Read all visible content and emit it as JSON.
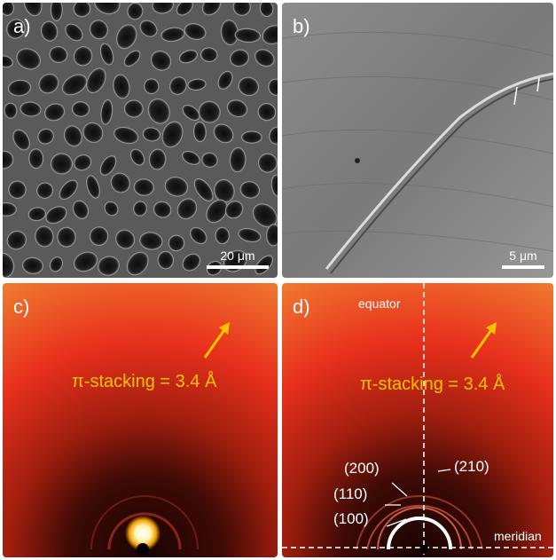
{
  "panels": {
    "a": {
      "label": "a)",
      "scale_bar": "20 μm"
    },
    "b": {
      "label": "b)",
      "scale_bar": "5 μm"
    },
    "c": {
      "label": "c)",
      "pi_stacking": "π-stacking = 3.4 Å"
    },
    "d": {
      "label": "d)",
      "pi_stacking": "π-stacking = 3.4 Å",
      "equator": "equator",
      "meridian": "meridian",
      "reflections": [
        "(200)",
        "(210)",
        "(110)",
        "(100)"
      ]
    }
  },
  "colors": {
    "accent": "#f5c400",
    "xray_base": "#e8301c",
    "xray_dark": "#2a0603"
  }
}
